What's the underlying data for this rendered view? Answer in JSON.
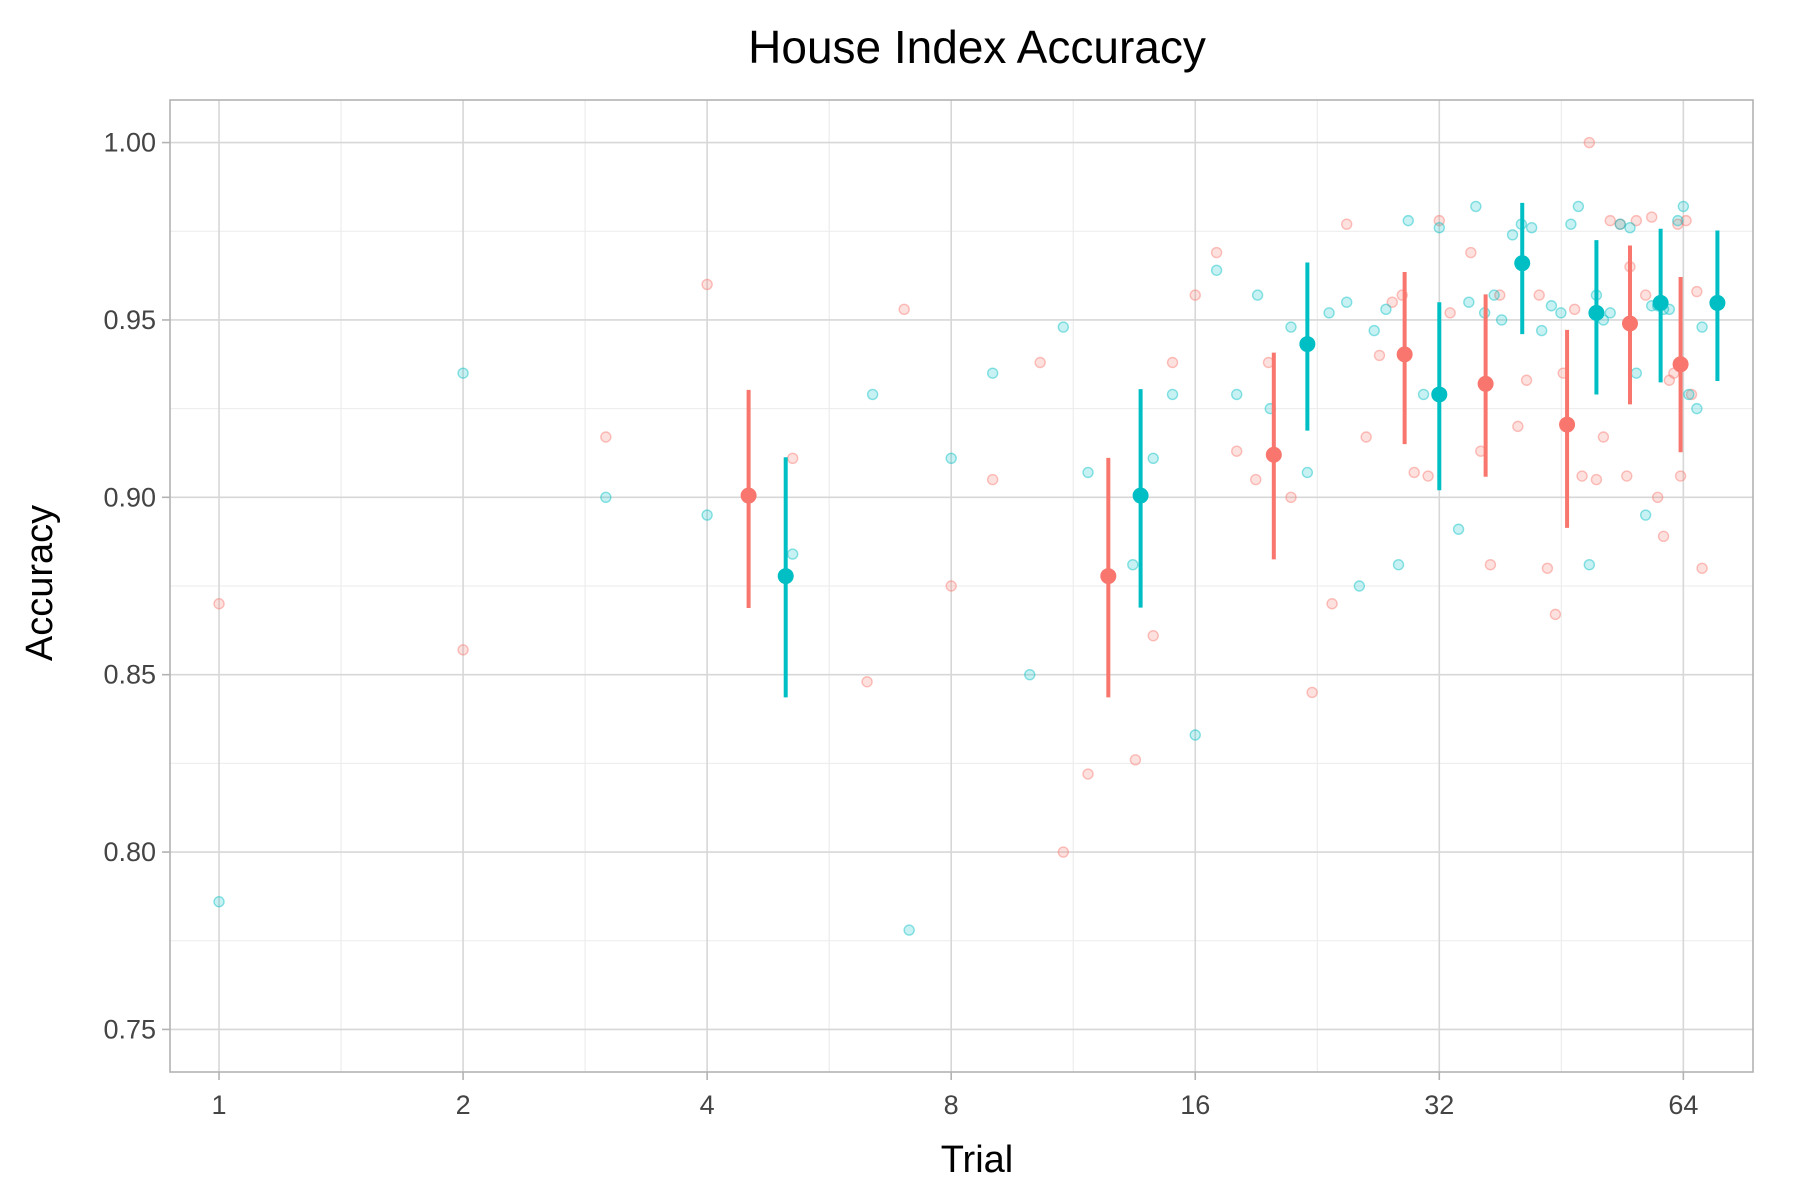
{
  "chart_data": {
    "type": "scatter",
    "title": "House Index Accuracy",
    "xlabel": "Trial",
    "ylabel": "Accuracy",
    "x_scale": "log2",
    "xlim": [
      0.87,
      78
    ],
    "ylim": [
      0.738,
      1.012
    ],
    "x_ticks": [
      1,
      2,
      4,
      8,
      16,
      32,
      64
    ],
    "x_tick_labels": [
      "1",
      "2",
      "4",
      "8",
      "16",
      "32",
      "64"
    ],
    "y_ticks": [
      0.75,
      0.8,
      0.85,
      0.9,
      0.95,
      1.0
    ],
    "y_tick_labels": [
      "0.75",
      "0.80",
      "0.85",
      "0.90",
      "0.95",
      "1.00"
    ],
    "grid": true,
    "legend": "none",
    "colors": {
      "red": "#F8766D",
      "teal": "#00BFC4"
    },
    "series": [
      {
        "color": "#F8766D",
        "points": [
          [
            1,
            0.87
          ],
          [
            2,
            0.857
          ],
          [
            3,
            0.917
          ],
          [
            4,
            0.96
          ],
          [
            5.1,
            0.911
          ],
          [
            6.3,
            0.848
          ],
          [
            7,
            0.953
          ],
          [
            8,
            0.875
          ],
          [
            9,
            0.905
          ],
          [
            10.3,
            0.938
          ],
          [
            11,
            0.8
          ],
          [
            11.8,
            0.822
          ],
          [
            13.5,
            0.826
          ],
          [
            14.2,
            0.861
          ],
          [
            15,
            0.938
          ],
          [
            16,
            0.957
          ],
          [
            17,
            0.969
          ],
          [
            18,
            0.913
          ],
          [
            19,
            0.905
          ],
          [
            19.7,
            0.938
          ],
          [
            21,
            0.9
          ],
          [
            22.3,
            0.845
          ],
          [
            23.6,
            0.87
          ],
          [
            24.6,
            0.977
          ],
          [
            26,
            0.917
          ],
          [
            27,
            0.94
          ],
          [
            28,
            0.955
          ],
          [
            28.8,
            0.957
          ],
          [
            29.8,
            0.907
          ],
          [
            31,
            0.906
          ],
          [
            32,
            0.978
          ],
          [
            33,
            0.952
          ],
          [
            35,
            0.969
          ],
          [
            36,
            0.913
          ],
          [
            37,
            0.881
          ],
          [
            38,
            0.957
          ],
          [
            40,
            0.92
          ],
          [
            41,
            0.933
          ],
          [
            42.5,
            0.957
          ],
          [
            43.5,
            0.88
          ],
          [
            44.5,
            0.867
          ],
          [
            45.5,
            0.935
          ],
          [
            47,
            0.953
          ],
          [
            48,
            0.906
          ],
          [
            49,
            1.0
          ],
          [
            50,
            0.905
          ],
          [
            51,
            0.917
          ],
          [
            52,
            0.978
          ],
          [
            53.5,
            0.977
          ],
          [
            54.5,
            0.906
          ],
          [
            55,
            0.965
          ],
          [
            56,
            0.978
          ],
          [
            57.5,
            0.957
          ],
          [
            58.5,
            0.979
          ],
          [
            59.5,
            0.9
          ],
          [
            60.5,
            0.889
          ],
          [
            61.5,
            0.933
          ],
          [
            62.3,
            0.935
          ],
          [
            63,
            0.977
          ],
          [
            63.5,
            0.906
          ],
          [
            64.5,
            0.978
          ],
          [
            65.5,
            0.929
          ],
          [
            66.5,
            0.958
          ],
          [
            67.5,
            0.88
          ]
        ],
        "means": [
          {
            "x": 4.5,
            "y": 0.9005,
            "lo": 0.8688,
            "hi": 0.9303
          },
          {
            "x": 12.5,
            "y": 0.8778,
            "lo": 0.8436,
            "hi": 0.9111
          },
          {
            "x": 20,
            "y": 0.912,
            "lo": 0.8825,
            "hi": 0.9408
          },
          {
            "x": 29,
            "y": 0.9403,
            "lo": 0.915,
            "hi": 0.9635
          },
          {
            "x": 36.5,
            "y": 0.932,
            "lo": 0.9058,
            "hi": 0.9572
          },
          {
            "x": 46,
            "y": 0.9205,
            "lo": 0.8914,
            "hi": 0.9472
          },
          {
            "x": 55,
            "y": 0.949,
            "lo": 0.9262,
            "hi": 0.971
          },
          {
            "x": 63.5,
            "y": 0.9375,
            "lo": 0.9127,
            "hi": 0.9621
          }
        ]
      },
      {
        "color": "#00BFC4",
        "points": [
          [
            1,
            0.786
          ],
          [
            2,
            0.935
          ],
          [
            3,
            0.9
          ],
          [
            4,
            0.895
          ],
          [
            5.1,
            0.884
          ],
          [
            6.4,
            0.929
          ],
          [
            7.1,
            0.778
          ],
          [
            8,
            0.911
          ],
          [
            9,
            0.935
          ],
          [
            10,
            0.85
          ],
          [
            11,
            0.948
          ],
          [
            11.8,
            0.907
          ],
          [
            13.4,
            0.881
          ],
          [
            14.2,
            0.911
          ],
          [
            15,
            0.929
          ],
          [
            16,
            0.833
          ],
          [
            17,
            0.964
          ],
          [
            18,
            0.929
          ],
          [
            19.1,
            0.957
          ],
          [
            19.8,
            0.925
          ],
          [
            21,
            0.948
          ],
          [
            22,
            0.907
          ],
          [
            23.4,
            0.952
          ],
          [
            24.6,
            0.955
          ],
          [
            25.5,
            0.875
          ],
          [
            26.6,
            0.947
          ],
          [
            27.5,
            0.953
          ],
          [
            28.5,
            0.881
          ],
          [
            29.3,
            0.978
          ],
          [
            30.6,
            0.929
          ],
          [
            32,
            0.976
          ],
          [
            33.8,
            0.891
          ],
          [
            34.8,
            0.955
          ],
          [
            35.5,
            0.982
          ],
          [
            36.4,
            0.952
          ],
          [
            37.4,
            0.957
          ],
          [
            38.2,
            0.95
          ],
          [
            39.4,
            0.974
          ],
          [
            40.4,
            0.977
          ],
          [
            41.6,
            0.976
          ],
          [
            42.8,
            0.947
          ],
          [
            44,
            0.954
          ],
          [
            45.2,
            0.952
          ],
          [
            46.5,
            0.977
          ],
          [
            47.5,
            0.982
          ],
          [
            49,
            0.881
          ],
          [
            50,
            0.957
          ],
          [
            51,
            0.95
          ],
          [
            52,
            0.952
          ],
          [
            53.5,
            0.977
          ],
          [
            55,
            0.976
          ],
          [
            56,
            0.935
          ],
          [
            57.5,
            0.895
          ],
          [
            58.5,
            0.954
          ],
          [
            59.5,
            0.954
          ],
          [
            60.5,
            0.953
          ],
          [
            61.5,
            0.953
          ],
          [
            63,
            0.978
          ],
          [
            64,
            0.982
          ],
          [
            65,
            0.929
          ],
          [
            66.5,
            0.925
          ],
          [
            67.5,
            0.948
          ]
        ],
        "means": [
          {
            "x": 5,
            "y": 0.8778,
            "lo": 0.8436,
            "hi": 0.9113
          },
          {
            "x": 13.7,
            "y": 0.9005,
            "lo": 0.8689,
            "hi": 0.9305
          },
          {
            "x": 22,
            "y": 0.9432,
            "lo": 0.9188,
            "hi": 0.9662
          },
          {
            "x": 32,
            "y": 0.929,
            "lo": 0.902,
            "hi": 0.955
          },
          {
            "x": 40.5,
            "y": 0.966,
            "lo": 0.946,
            "hi": 0.983
          },
          {
            "x": 50,
            "y": 0.952,
            "lo": 0.929,
            "hi": 0.9725
          },
          {
            "x": 60,
            "y": 0.9548,
            "lo": 0.9324,
            "hi": 0.9757
          },
          {
            "x": 70.5,
            "y": 0.9548,
            "lo": 0.9328,
            "hi": 0.9752
          }
        ]
      }
    ]
  }
}
